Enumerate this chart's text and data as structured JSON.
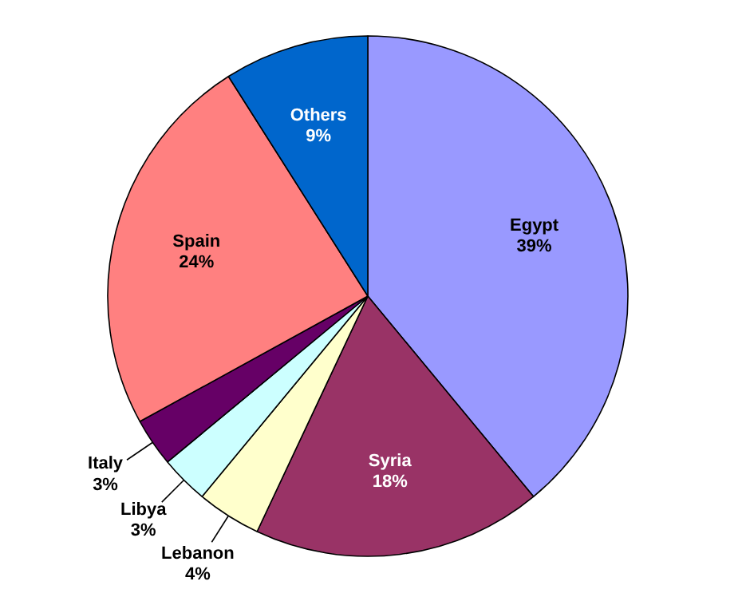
{
  "chart_data": {
    "type": "pie",
    "categories": [
      "Egypt",
      "Syria",
      "Lebanon",
      "Libya",
      "Italy",
      "Spain",
      "Others"
    ],
    "values": [
      39,
      18,
      4,
      3,
      3,
      24,
      9
    ],
    "value_labels": [
      "39%",
      "18%",
      "4%",
      "3%",
      "3%",
      "24%",
      "9%"
    ],
    "colors": [
      "#9999ff",
      "#993366",
      "#ffffcc",
      "#ccffff",
      "#660066",
      "#ff8080",
      "#0066cc"
    ],
    "legend": false
  }
}
